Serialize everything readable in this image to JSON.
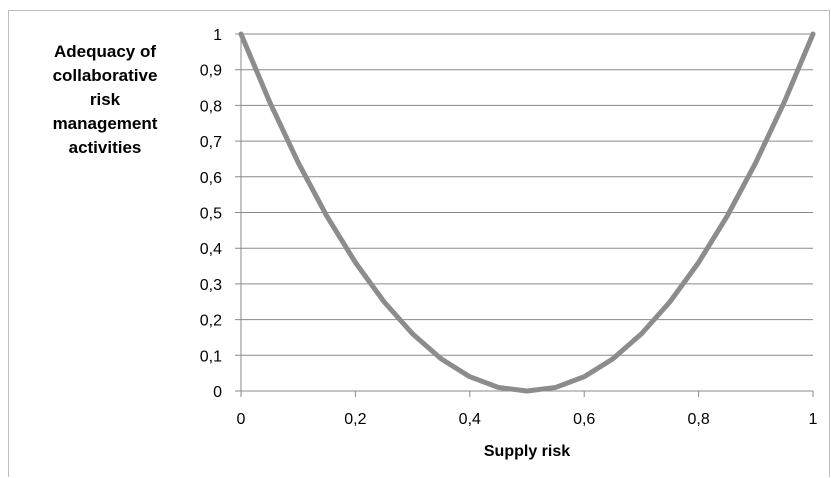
{
  "chart_data": {
    "type": "line",
    "ylabel_lines": [
      "Adequacy of",
      "collaborative",
      "risk",
      "management",
      "activities"
    ],
    "xlabel": "Supply risk",
    "xlim": [
      0,
      1
    ],
    "ylim": [
      0,
      1
    ],
    "x_ticks": [
      "0",
      "0,2",
      "0,4",
      "0,6",
      "0,8",
      "1"
    ],
    "y_ticks": [
      "0",
      "0,1",
      "0,2",
      "0,3",
      "0,4",
      "0,5",
      "0,6",
      "0,7",
      "0,8",
      "0,9",
      "1"
    ],
    "grid": "horizontal",
    "series": [
      {
        "color": "#8c8c8c",
        "x": [
          0,
          0.05,
          0.1,
          0.15,
          0.2,
          0.25,
          0.3,
          0.35,
          0.4,
          0.45,
          0.5,
          0.55,
          0.6,
          0.65,
          0.7,
          0.75,
          0.8,
          0.85,
          0.9,
          0.95,
          1
        ],
        "y": [
          1,
          0.81,
          0.64,
          0.49,
          0.36,
          0.25,
          0.16,
          0.09,
          0.04,
          0.01,
          0,
          0.01,
          0.04,
          0.09,
          0.16,
          0.25,
          0.36,
          0.49,
          0.64,
          0.81,
          1
        ]
      }
    ]
  }
}
